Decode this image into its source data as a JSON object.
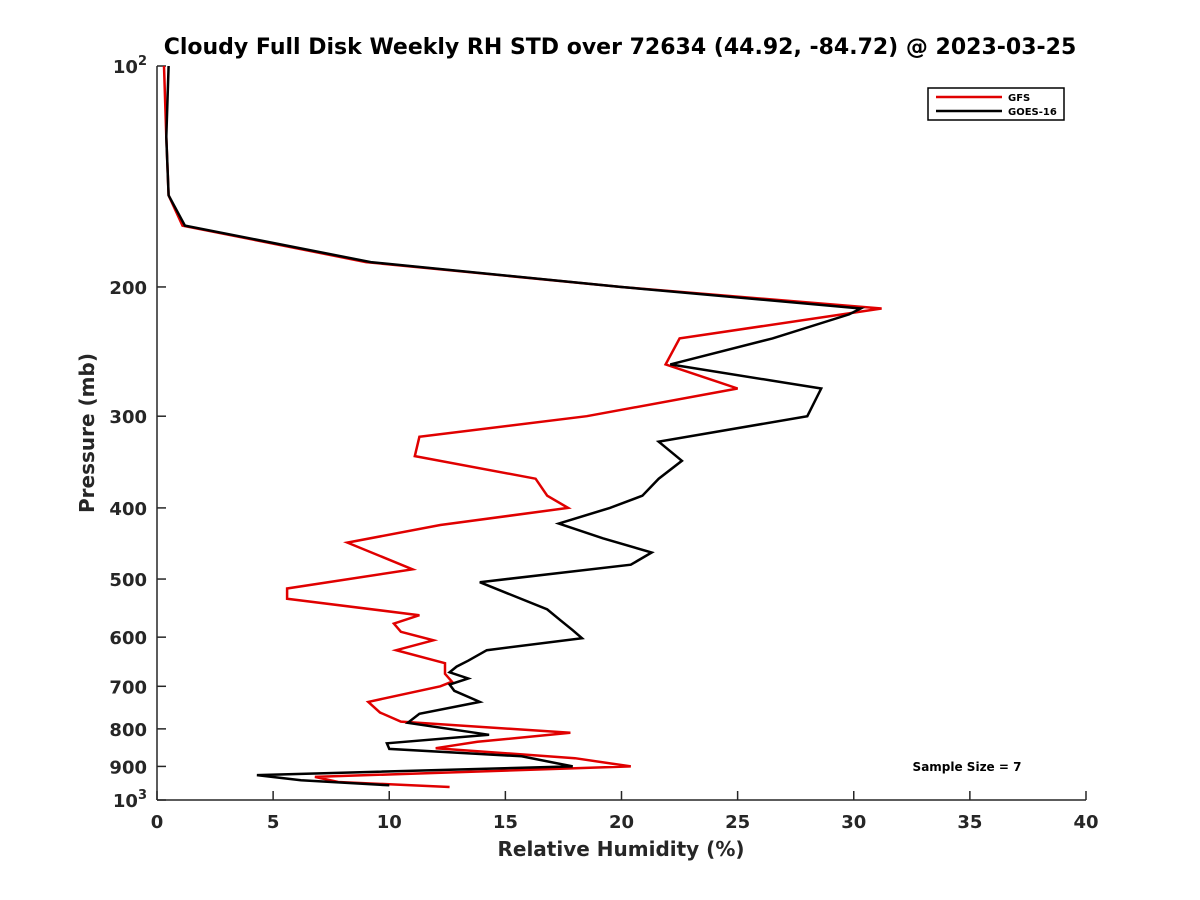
{
  "chart_data": {
    "type": "line",
    "title": "Cloudy Full Disk Weekly RH STD over 72634 (44.92, -84.72) @ 2023-03-25",
    "xlabel": "Relative Humidity (%)",
    "ylabel": "Pressure (mb)",
    "xlim": [
      0,
      40
    ],
    "ylim": [
      100,
      1000
    ],
    "y_scale": "log",
    "y_reversed": true,
    "x_ticks": [
      "0",
      "5",
      "10",
      "15",
      "20",
      "25",
      "30",
      "35",
      "40"
    ],
    "y_ticks": [
      {
        "value": 100,
        "base": "10",
        "exp": "2"
      },
      {
        "value": 200,
        "label": "200"
      },
      {
        "value": 300,
        "label": "300"
      },
      {
        "value": 400,
        "label": "400"
      },
      {
        "value": 500,
        "label": "500"
      },
      {
        "value": 600,
        "label": "600"
      },
      {
        "value": 700,
        "label": "700"
      },
      {
        "value": 800,
        "label": "800"
      },
      {
        "value": 900,
        "label": "900"
      },
      {
        "value": 1000,
        "base": "10",
        "exp": "3"
      }
    ],
    "legend": "top-right",
    "grid": false,
    "annotation": "Sample Size = 7",
    "series": [
      {
        "name": "GFS",
        "color": "#e00000",
        "points": [
          [
            0.3,
            100
          ],
          [
            0.4,
            125
          ],
          [
            0.5,
            150
          ],
          [
            1.1,
            165
          ],
          [
            9.0,
            185
          ],
          [
            20.0,
            200
          ],
          [
            31.2,
            214
          ],
          [
            22.5,
            235
          ],
          [
            21.9,
            255
          ],
          [
            25.0,
            275
          ],
          [
            18.5,
            300
          ],
          [
            11.3,
            320
          ],
          [
            11.1,
            340
          ],
          [
            16.3,
            365
          ],
          [
            16.8,
            385
          ],
          [
            17.7,
            400
          ],
          [
            12.2,
            422
          ],
          [
            8.2,
            446
          ],
          [
            11.0,
            485
          ],
          [
            5.6,
            515
          ],
          [
            5.6,
            532
          ],
          [
            11.3,
            560
          ],
          [
            10.2,
            575
          ],
          [
            10.5,
            590
          ],
          [
            11.9,
            606
          ],
          [
            10.3,
            625
          ],
          [
            12.4,
            651
          ],
          [
            12.4,
            673
          ],
          [
            12.7,
            690
          ],
          [
            12.2,
            700
          ],
          [
            9.1,
            735
          ],
          [
            9.6,
            760
          ],
          [
            10.5,
            782
          ],
          [
            17.8,
            810
          ],
          [
            13.8,
            833
          ],
          [
            12.0,
            850
          ],
          [
            18.0,
            877
          ],
          [
            20.4,
            900
          ],
          [
            6.8,
            930
          ],
          [
            7.8,
            945
          ],
          [
            12.6,
            960
          ]
        ]
      },
      {
        "name": "GOES-16",
        "color": "#000000",
        "points": [
          [
            0.5,
            100
          ],
          [
            0.4,
            125
          ],
          [
            0.5,
            150
          ],
          [
            1.2,
            165
          ],
          [
            9.2,
            185
          ],
          [
            20.0,
            200
          ],
          [
            30.3,
            214
          ],
          [
            29.8,
            218
          ],
          [
            26.5,
            235
          ],
          [
            22.1,
            255
          ],
          [
            28.6,
            275
          ],
          [
            28.0,
            300
          ],
          [
            21.6,
            325
          ],
          [
            22.6,
            345
          ],
          [
            21.6,
            365
          ],
          [
            20.9,
            385
          ],
          [
            19.5,
            400
          ],
          [
            17.3,
            420
          ],
          [
            19.2,
            440
          ],
          [
            21.3,
            460
          ],
          [
            20.4,
            478
          ],
          [
            13.9,
            505
          ],
          [
            16.8,
            550
          ],
          [
            17.4,
            570
          ],
          [
            17.9,
            587
          ],
          [
            18.3,
            602
          ],
          [
            14.2,
            625
          ],
          [
            13.4,
            646
          ],
          [
            12.9,
            658
          ],
          [
            12.6,
            670
          ],
          [
            13.4,
            683
          ],
          [
            12.6,
            696
          ],
          [
            12.8,
            710
          ],
          [
            13.9,
            735
          ],
          [
            11.3,
            763
          ],
          [
            10.8,
            785
          ],
          [
            14.3,
            815
          ],
          [
            9.9,
            837
          ],
          [
            10.0,
            852
          ],
          [
            15.7,
            872
          ],
          [
            17.9,
            900
          ],
          [
            4.3,
            925
          ],
          [
            6.2,
            940
          ],
          [
            10.0,
            955
          ]
        ]
      }
    ]
  }
}
